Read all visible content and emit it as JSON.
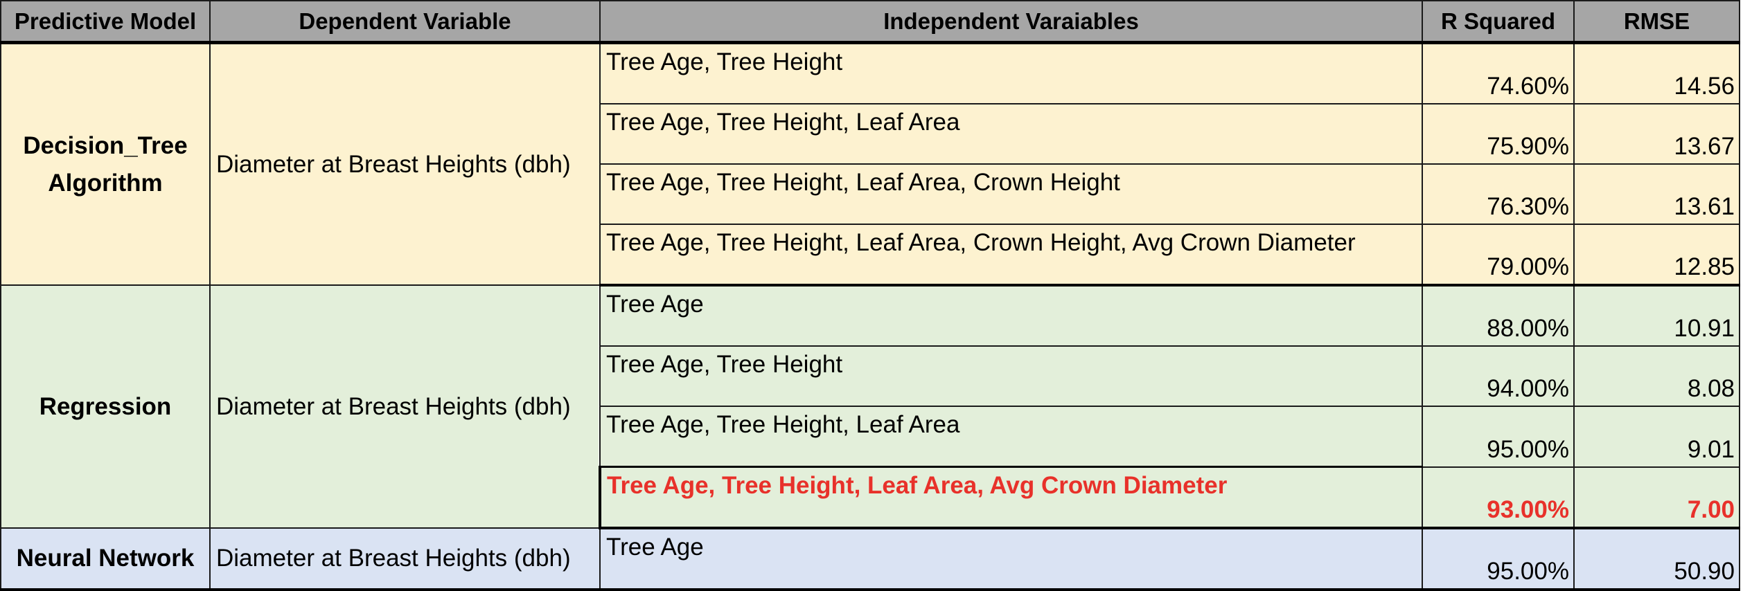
{
  "table": {
    "headers": {
      "model": "Predictive Model",
      "dependent": "Dependent Variable",
      "independent": "Independent Varaiables",
      "r_squared": "R Squared",
      "rmse": "RMSE"
    },
    "groups": [
      {
        "model": "Decision_Tree Algorithm",
        "dependent": "Diameter at Breast Heights (dbh)",
        "background": "#fdf2d0",
        "rows": [
          {
            "independent": "Tree Age, Tree Height",
            "r_squared": "74.60%",
            "rmse": "14.56"
          },
          {
            "independent": "Tree Age, Tree Height, Leaf Area",
            "r_squared": "75.90%",
            "rmse": "13.67"
          },
          {
            "independent": "Tree Age, Tree Height, Leaf Area, Crown Height",
            "r_squared": "76.30%",
            "rmse": "13.61"
          },
          {
            "independent": "Tree Age, Tree Height, Leaf Area, Crown Height, Avg Crown Diameter",
            "r_squared": "79.00%",
            "rmse": "12.85"
          }
        ]
      },
      {
        "model": "Regression",
        "dependent": "Diameter at Breast Heights (dbh)",
        "background": "#e3efda",
        "rows": [
          {
            "independent": "Tree Age",
            "r_squared": "88.00%",
            "rmse": "10.91"
          },
          {
            "independent": "Tree Age, Tree Height",
            "r_squared": "94.00%",
            "rmse": "8.08"
          },
          {
            "independent": "Tree Age, Tree Height, Leaf Area",
            "r_squared": "95.00%",
            "rmse": "9.01"
          },
          {
            "independent": "Tree Age, Tree Height, Leaf Area, Avg Crown Diameter",
            "r_squared": "93.00%",
            "rmse": "7.00",
            "highlight": true
          }
        ]
      },
      {
        "model": "Neural Network",
        "dependent": "Diameter at Breast Heights (dbh)",
        "background": "#dae3f3",
        "rows": [
          {
            "independent": "Tree Age",
            "r_squared": "95.00%",
            "rmse": "50.90"
          }
        ]
      }
    ]
  },
  "highlight_color": "#e8312a"
}
